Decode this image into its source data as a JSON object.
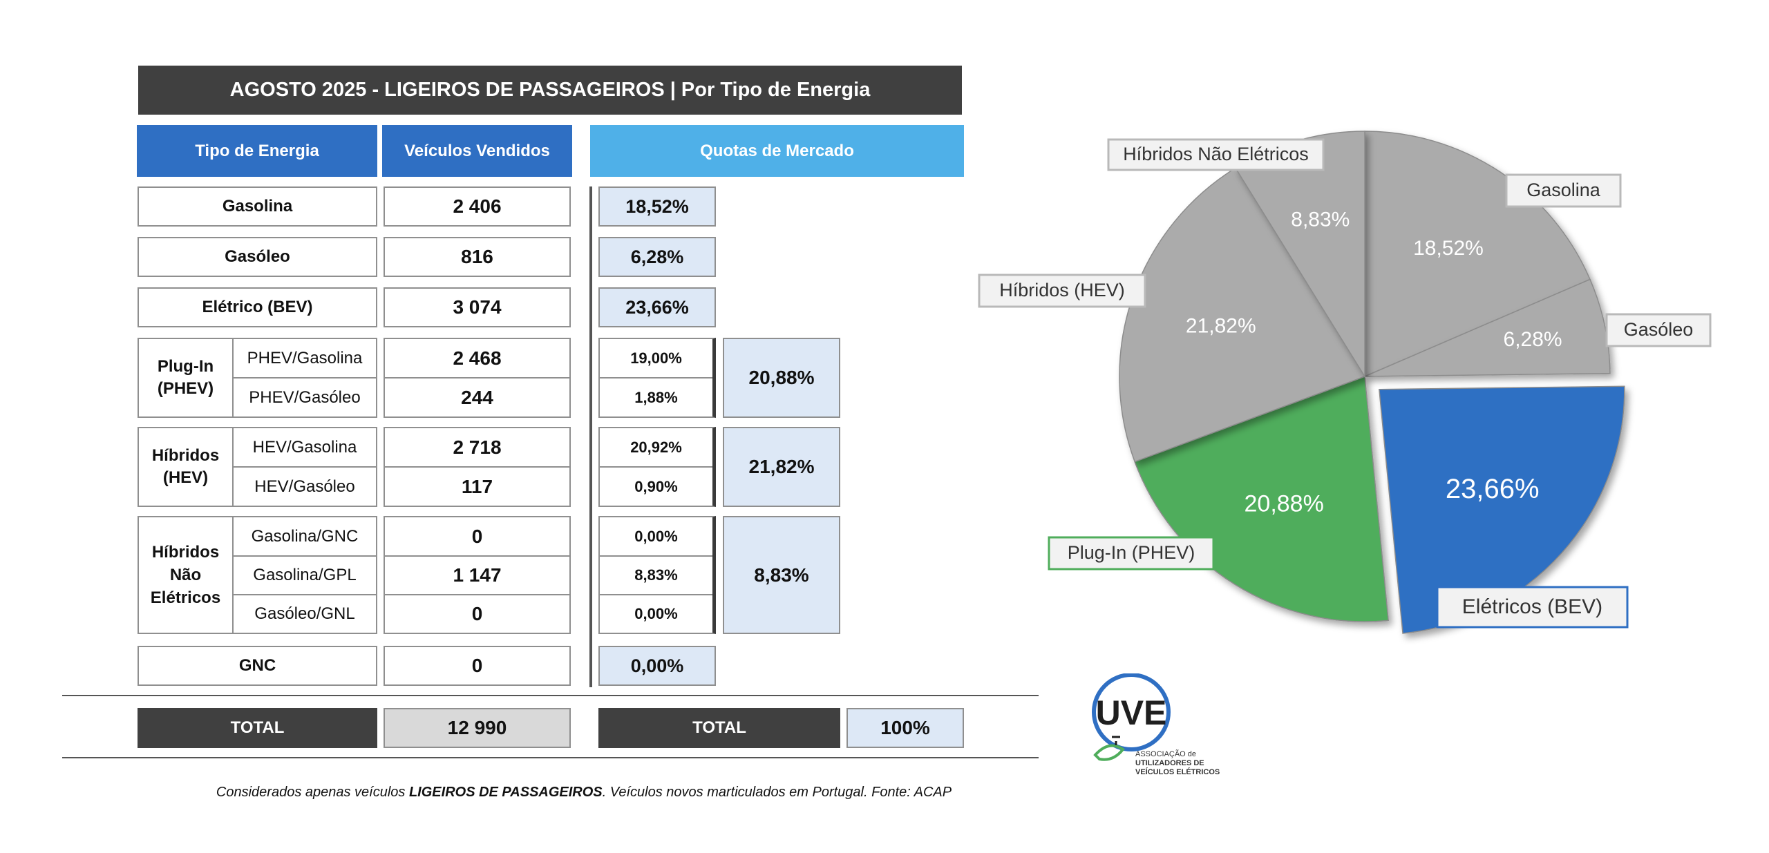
{
  "table": {
    "title": "AGOSTO 2025 - LIGEIROS DE PASSAGEIROS | Por Tipo de Energia",
    "headers": {
      "tipo": "Tipo de Energia",
      "vendidos": "Veículos Vendidos",
      "quotas": "Quotas de Mercado"
    },
    "rows": {
      "gasolina": {
        "label": "Gasolina",
        "value": "2 406",
        "share": "18,52%"
      },
      "gasoleo": {
        "label": "Gasóleo",
        "value": "816",
        "share": "6,28%"
      },
      "eletrico": {
        "label": "Elétrico (BEV)",
        "value": "3 074",
        "share": "23,66%"
      },
      "plugin": {
        "label_line1": "Plug-In",
        "label_line2": "(PHEV)",
        "group_share": "20,88%",
        "subs": [
          {
            "label": "PHEV/Gasolina",
            "value": "2 468",
            "share": "19,00%"
          },
          {
            "label": "PHEV/Gasóleo",
            "value": "244",
            "share": "1,88%"
          }
        ]
      },
      "hibridos": {
        "label_line1": "Híbridos",
        "label_line2": "(HEV)",
        "group_share": "21,82%",
        "subs": [
          {
            "label": "HEV/Gasolina",
            "value": "2 718",
            "share": "20,92%"
          },
          {
            "label": "HEV/Gasóleo",
            "value": "117",
            "share": "0,90%"
          }
        ]
      },
      "hne": {
        "label_line1": "Híbridos",
        "label_line2": "Não",
        "label_line3": "Elétricos",
        "group_share": "8,83%",
        "subs": [
          {
            "label": "Gasolina/GNC",
            "value": "0",
            "share": "0,00%"
          },
          {
            "label": "Gasolina/GPL",
            "value": "1 147",
            "share": "8,83%"
          },
          {
            "label": "Gasóleo/GNL",
            "value": "0",
            "share": "0,00%"
          }
        ]
      },
      "gnc": {
        "label": "GNC",
        "value": "0",
        "share": "0,00%"
      }
    },
    "total": {
      "label": "TOTAL",
      "value": "12 990",
      "share_label": "TOTAL",
      "share": "100%"
    }
  },
  "footnote": {
    "pre": "Considerados apenas veículos ",
    "bold": "LIGEIROS DE PASSAGEIROS",
    "post": ". Veículos novos marticulados em Portugal. Fonte: ACAP"
  },
  "logo": {
    "mark": "UVE",
    "line1": "ASSOCIAÇÃO de",
    "line2": "UTILIZADORES DE",
    "line3": "VEÍCULOS ELÉTRICOS"
  },
  "chart_data": {
    "type": "pie",
    "slices": [
      {
        "name": "Gasolina",
        "value": 18.52,
        "label": "18,52%",
        "color": "#ababab",
        "exploded": false
      },
      {
        "name": "Gasóleo",
        "value": 6.28,
        "label": "6,28%",
        "color": "#ababab",
        "exploded": false
      },
      {
        "name": "Elétricos (BEV)",
        "value": 23.66,
        "label": "23,66%",
        "color": "#2f6fc3",
        "exploded": true
      },
      {
        "name": "Plug-In (PHEV)",
        "value": 20.88,
        "label": "20,88%",
        "color": "#4fad5b",
        "exploded": false
      },
      {
        "name": "Híbridos (HEV)",
        "value": 21.82,
        "label": "21,82%",
        "color": "#ababab",
        "exploded": false
      },
      {
        "name": "Híbridos Não Elétricos",
        "value": 8.83,
        "label": "8,83%",
        "color": "#ababab",
        "exploded": false
      }
    ],
    "start": "12 o'clock",
    "direction": "clockwise"
  }
}
